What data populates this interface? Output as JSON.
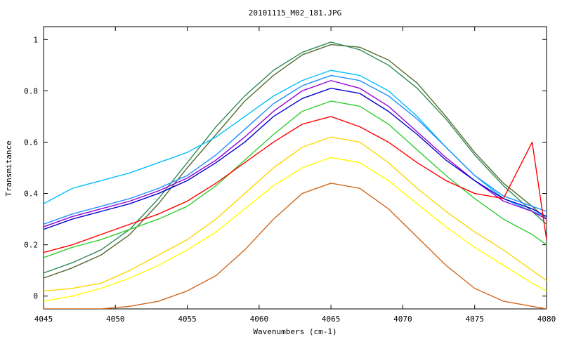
{
  "chart_data": {
    "type": "line",
    "title": "20101115_M02_181.JPG",
    "xlabel": "Wavenumbers (cm-1)",
    "ylabel": "Transmitance",
    "xlim": [
      4045,
      4080
    ],
    "ylim": [
      -0.05,
      1.05
    ],
    "x_ticks": [
      4045,
      4050,
      4055,
      4060,
      4065,
      4070,
      4075,
      4080
    ],
    "x_tick_labels": [
      "4045",
      "4050",
      "4055",
      "4060",
      "4065",
      "4070",
      "4075",
      "4080"
    ],
    "y_ticks": [
      0,
      0.2,
      0.4,
      0.6,
      0.8,
      1
    ],
    "y_tick_labels": [
      "0",
      "0.2",
      "0.4",
      "0.6",
      "0.8",
      "1"
    ],
    "grid": false,
    "legend": "none",
    "x": [
      4045,
      4047,
      4049,
      4051,
      4053,
      4055,
      4057,
      4059,
      4061,
      4063,
      4065,
      4067,
      4069,
      4071,
      4073,
      4075,
      4077,
      4079,
      4080
    ],
    "series": [
      {
        "color": "#556b2f",
        "values": [
          0.07,
          0.11,
          0.16,
          0.24,
          0.36,
          0.5,
          0.63,
          0.76,
          0.86,
          0.94,
          0.98,
          0.97,
          0.92,
          0.83,
          0.7,
          0.56,
          0.44,
          0.35,
          0.3
        ]
      },
      {
        "color": "#2e8b57",
        "values": [
          0.09,
          0.13,
          0.18,
          0.26,
          0.38,
          0.52,
          0.66,
          0.78,
          0.88,
          0.95,
          0.99,
          0.96,
          0.9,
          0.81,
          0.69,
          0.55,
          0.43,
          0.33,
          0.28
        ]
      },
      {
        "color": "#00bfff",
        "values": [
          0.36,
          0.42,
          0.45,
          0.48,
          0.52,
          0.56,
          0.62,
          0.7,
          0.78,
          0.84,
          0.88,
          0.86,
          0.8,
          0.7,
          0.58,
          0.47,
          0.38,
          0.33,
          0.31
        ]
      },
      {
        "color": "#1e90ff",
        "values": [
          0.28,
          0.32,
          0.35,
          0.38,
          0.42,
          0.47,
          0.55,
          0.65,
          0.75,
          0.82,
          0.86,
          0.84,
          0.78,
          0.69,
          0.58,
          0.47,
          0.39,
          0.35,
          0.33
        ]
      },
      {
        "color": "#9400d3",
        "values": [
          0.27,
          0.31,
          0.34,
          0.37,
          0.41,
          0.46,
          0.53,
          0.62,
          0.72,
          0.8,
          0.84,
          0.81,
          0.74,
          0.64,
          0.54,
          0.45,
          0.37,
          0.33,
          0.3
        ]
      },
      {
        "color": "#0000cd",
        "values": [
          0.26,
          0.3,
          0.33,
          0.36,
          0.4,
          0.45,
          0.52,
          0.6,
          0.7,
          0.77,
          0.81,
          0.79,
          0.72,
          0.63,
          0.53,
          0.45,
          0.38,
          0.34,
          0.31
        ]
      },
      {
        "color": "#32cd32",
        "values": [
          0.15,
          0.19,
          0.22,
          0.26,
          0.3,
          0.35,
          0.43,
          0.53,
          0.63,
          0.72,
          0.76,
          0.74,
          0.67,
          0.57,
          0.47,
          0.38,
          0.3,
          0.24,
          0.2
        ]
      },
      {
        "color": "#ff0000",
        "values": [
          0.17,
          0.2,
          0.24,
          0.28,
          0.32,
          0.37,
          0.44,
          0.52,
          0.6,
          0.67,
          0.7,
          0.66,
          0.6,
          0.52,
          0.45,
          0.4,
          0.38,
          0.6,
          0.22
        ]
      },
      {
        "color": "#ffd700",
        "values": [
          0.02,
          0.03,
          0.05,
          0.1,
          0.16,
          0.22,
          0.3,
          0.4,
          0.5,
          0.58,
          0.62,
          0.6,
          0.52,
          0.42,
          0.33,
          0.25,
          0.18,
          0.1,
          0.06
        ]
      },
      {
        "color": "#ffff00",
        "values": [
          -0.02,
          0.0,
          0.03,
          0.07,
          0.12,
          0.18,
          0.25,
          0.34,
          0.43,
          0.5,
          0.54,
          0.52,
          0.45,
          0.36,
          0.27,
          0.19,
          0.12,
          0.05,
          0.02
        ]
      },
      {
        "color": "#d2691e",
        "values": [
          -0.05,
          -0.05,
          -0.05,
          -0.04,
          -0.02,
          0.02,
          0.08,
          0.18,
          0.3,
          0.4,
          0.44,
          0.42,
          0.34,
          0.23,
          0.12,
          0.03,
          -0.02,
          -0.04,
          -0.05
        ]
      }
    ]
  }
}
